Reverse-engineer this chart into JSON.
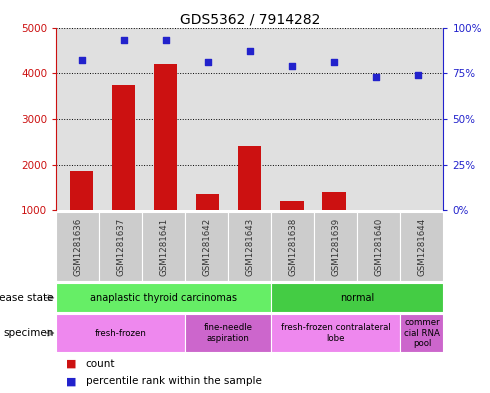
{
  "title": "GDS5362 / 7914282",
  "samples": [
    "GSM1281636",
    "GSM1281637",
    "GSM1281641",
    "GSM1281642",
    "GSM1281643",
    "GSM1281638",
    "GSM1281639",
    "GSM1281640",
    "GSM1281644"
  ],
  "counts": [
    1850,
    3750,
    4200,
    1350,
    2400,
    1200,
    1400,
    1000,
    1000
  ],
  "percentiles": [
    82,
    93,
    93,
    81,
    87,
    79,
    81,
    73,
    74
  ],
  "ylim_left": [
    1000,
    5000
  ],
  "ylim_right": [
    0,
    100
  ],
  "yticks_left": [
    1000,
    2000,
    3000,
    4000,
    5000
  ],
  "yticks_right": [
    0,
    25,
    50,
    75,
    100
  ],
  "disease_state": [
    {
      "label": "anaplastic thyroid carcinomas",
      "start": 0,
      "end": 5,
      "color": "#66ee66"
    },
    {
      "label": "normal",
      "start": 5,
      "end": 9,
      "color": "#44cc44"
    }
  ],
  "specimen": [
    {
      "label": "fresh-frozen",
      "start": 0,
      "end": 3,
      "color": "#ee88ee"
    },
    {
      "label": "fine-needle\naspiration",
      "start": 3,
      "end": 5,
      "color": "#cc66cc"
    },
    {
      "label": "fresh-frozen contralateral\nlobe",
      "start": 5,
      "end": 8,
      "color": "#ee88ee"
    },
    {
      "label": "commer\ncial RNA\npool",
      "start": 8,
      "end": 9,
      "color": "#cc66cc"
    }
  ],
  "bar_color": "#cc1111",
  "dot_color": "#2222cc",
  "left_axis_color": "#cc1111",
  "right_axis_color": "#2222cc",
  "background_color": "#ffffff",
  "plot_bg_color": "#e0e0e0",
  "sample_box_color": "#cccccc"
}
